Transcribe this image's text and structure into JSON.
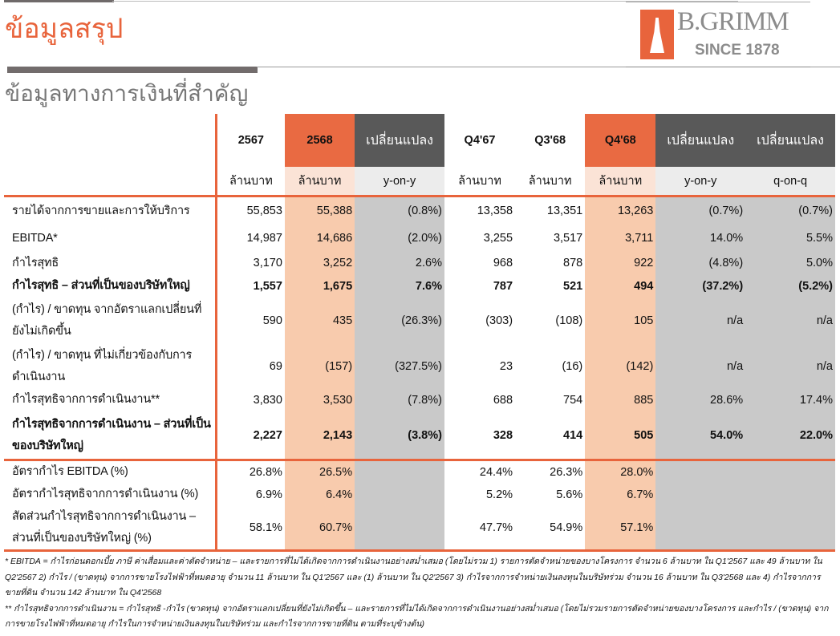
{
  "title": "ข้อมูลสรุป",
  "subtitle": "ข้อมูลทางการเงินที่สำคัญ",
  "logo": {
    "name": "B.GRIMM",
    "since": "SINCE 1878"
  },
  "colors": {
    "accent": "#e8643c",
    "peach": "#f8cbad",
    "grey": "#c9c9c9",
    "dark": "#595959"
  },
  "headers": [
    "2567",
    "2568",
    "เปลี่ยนแปลง",
    "Q4'67",
    "Q3'68",
    "Q4'68",
    "เปลี่ยนแปลง",
    "เปลี่ยนแปลง"
  ],
  "units": [
    "ล้านบาท",
    "ล้านบาท",
    "y-on-y",
    "ล้านบาท",
    "ล้านบาท",
    "ล้านบาท",
    "y-on-y",
    "q-on-q"
  ],
  "rows": [
    {
      "label": "รายได้จากการขายและการให้บริการ",
      "v": [
        "55,853",
        "55,388",
        "(0.8%)",
        "13,358",
        "13,351",
        "13,263",
        "(0.7%)",
        "(0.7%)"
      ]
    },
    {
      "label": "EBITDA*",
      "v": [
        "14,987",
        "14,686",
        "(2.0%)",
        "3,255",
        "3,517",
        "3,711",
        "14.0%",
        "5.5%"
      ]
    },
    {
      "label": "กำไรสุทธิ",
      "v": [
        "3,170",
        "3,252",
        "2.6%",
        "968",
        "878",
        "922",
        "(4.8%)",
        "5.0%"
      ]
    },
    {
      "label": "กำไรสุทธิ – ส่วนที่เป็นของบริษัทใหญ่",
      "v": [
        "1,557",
        "1,675",
        "7.6%",
        "787",
        "521",
        "494",
        "(37.2%)",
        "(5.2%)"
      ]
    },
    {
      "label": "(กำไร) / ขาดทุน จากอัตราแลกเปลี่ยนที่ยังไม่เกิดขึ้น",
      "v": [
        "590",
        "435",
        "(26.3%)",
        "(303)",
        "(108)",
        "105",
        "n/a",
        "n/a"
      ]
    },
    {
      "label": "(กำไร) / ขาดทุน ที่ไม่เกี่ยวข้องกับการดำเนินงาน",
      "v": [
        "69",
        "(157)",
        "(327.5%)",
        "23",
        "(16)",
        "(142)",
        "n/a",
        "n/a"
      ]
    },
    {
      "label": "กำไรสุทธิจากการดำเนินงาน**",
      "v": [
        "3,830",
        "3,530",
        "(7.8%)",
        "688",
        "754",
        "885",
        "28.6%",
        "17.4%"
      ]
    },
    {
      "label": "กำไรสุทธิจากการดำเนินงาน – ส่วนที่เป็นของบริษัทใหญ่",
      "v": [
        "2,227",
        "2,143",
        "(3.8%)",
        "328",
        "414",
        "505",
        "54.0%",
        "22.0%"
      ]
    },
    {
      "label": "อัตรากำไร EBITDA (%)",
      "v": [
        "26.8%",
        "26.5%",
        "",
        "24.4%",
        "26.3%",
        "28.0%",
        "",
        ""
      ]
    },
    {
      "label": "อัตรากำไรสุทธิจากการดำเนินงาน (%)",
      "v": [
        "6.9%",
        "6.4%",
        "",
        "5.2%",
        "5.6%",
        "6.7%",
        "",
        ""
      ]
    },
    {
      "label": "สัดส่วนกำไรสุทธิจากการดำเนินงาน – ส่วนที่เป็นของบริษัทใหญ่ (%)",
      "v": [
        "58.1%",
        "60.7%",
        "",
        "47.7%",
        "54.9%",
        "57.1%",
        "",
        ""
      ]
    }
  ],
  "footnotes": [
    "*  EBITDA = กำไรก่อนดอกเบี้ย ภาษี ค่าเสื่อมและค่าตัดจำหน่าย – และรายการที่ไม่ได้เกิดจากการดำเนินงานอย่างสม่ำเสมอ (โดยไม่รวม 1) รายการตัดจำหน่ายของบางโครงการ จำนวน 6 ล้านบาท ใน Q1'2567 และ 49 ล้านบาท ใน Q2'2567 2) กำไร / (ขาดทุน) จากการขายโรงไฟฟ้าที่หมดอายุ จำนวน 11 ล้านบาท ใน Q1'2567 และ (1) ล้านบาท ใน Q2'2567 3) กำไรจากการจำหน่ายเงินลงทุนในบริษัทร่วม จำนวน 16 ล้านบาท ใน Q3'2568 และ 4) กำไรจากการขายที่ดิน จำนวน 142 ล้านบาท ใน Q4'2568",
    "** กำไรสุทธิจากการดำเนินงาน = กำไรสุทธิ -กำไร (ขาดทุน) จากอัตราแลกเปลี่ยนที่ยังไม่เกิดขึ้น – และรายการที่ไม่ได้เกิดจากการดำเนินงานอย่างสม่ำเสมอ (โดยไม่รวมรายการตัดจำหน่ายของบางโครงการ และกำไร / (ขาดทุน) จากการขายโรงไฟฟ้าที่หมดอายุ กำไรในการจำหน่ายเงินลงทุนในบริษัทร่วม และกำไรจากการขายที่ดิน ตามที่ระบุข้างต้น)"
  ]
}
